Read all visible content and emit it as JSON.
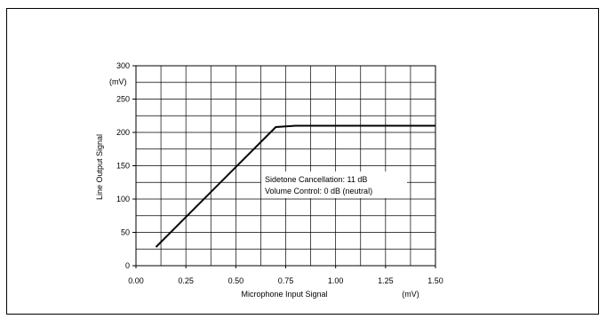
{
  "chart_data": {
    "type": "line",
    "xlabel": "Microphone Input Signal",
    "xunit": "(mV)",
    "ylabel": "Line Output Signal",
    "yunit": "(mV)",
    "xlim": [
      0,
      1.5
    ],
    "ylim": [
      0,
      300
    ],
    "x_ticks": [
      "0.00",
      "0.25",
      "0.50",
      "0.75",
      "1.00",
      "1.25",
      "1.50"
    ],
    "y_ticks": [
      "0",
      "50",
      "100",
      "150",
      "200",
      "250",
      "300"
    ],
    "grid": true,
    "series": [
      {
        "x": [
          0.1,
          0.7,
          0.8,
          1.5
        ],
        "y": [
          28,
          208,
          210,
          210
        ]
      }
    ],
    "annotations": [
      "Sidetone Cancellation: 11 dB",
      "Volume Control: 0 dB (neutral)"
    ]
  }
}
